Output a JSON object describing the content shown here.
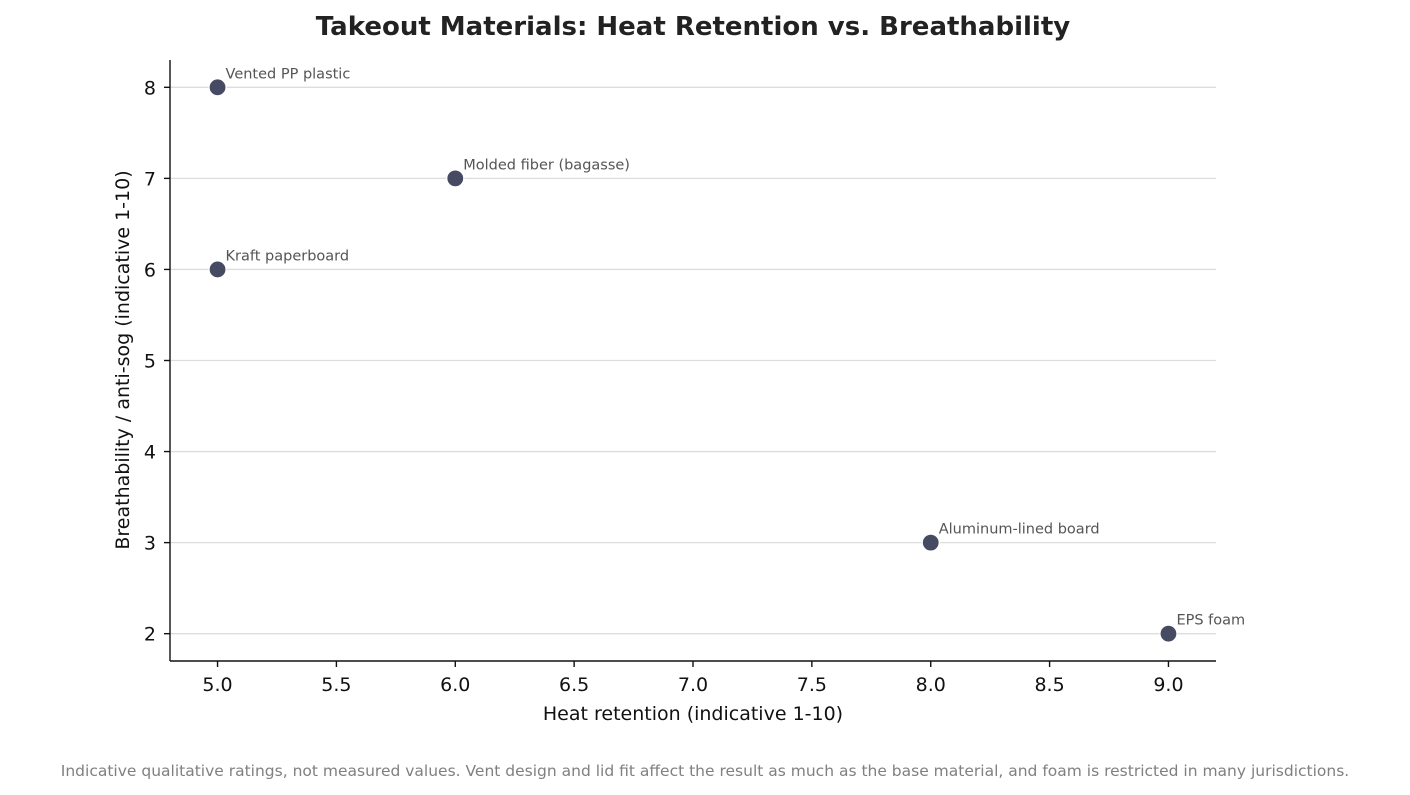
{
  "chart_data": {
    "type": "scatter",
    "title": "Takeout Materials: Heat Retention vs. Breathability",
    "xlabel": "Heat retention (indicative 1-10)",
    "ylabel": "Breathability / anti-sog (indicative 1-10)",
    "xlim": [
      4.8,
      9.2
    ],
    "ylim": [
      1.7,
      8.3
    ],
    "xticks": [
      5.0,
      5.5,
      6.0,
      6.5,
      7.0,
      7.5,
      8.0,
      8.5,
      9.0
    ],
    "xtick_labels": [
      "5.0",
      "5.5",
      "6.0",
      "6.5",
      "7.0",
      "7.5",
      "8.0",
      "8.5",
      "9.0"
    ],
    "yticks": [
      2,
      3,
      4,
      5,
      6,
      7,
      8
    ],
    "ytick_labels": [
      "2",
      "3",
      "4",
      "5",
      "6",
      "7",
      "8"
    ],
    "grid": "horizontal",
    "point_color": "#464a62",
    "points": [
      {
        "label": "Vented PP plastic",
        "x": 5,
        "y": 8
      },
      {
        "label": "Molded fiber (bagasse)",
        "x": 6,
        "y": 7
      },
      {
        "label": "Kraft paperboard",
        "x": 5,
        "y": 6
      },
      {
        "label": "Aluminum-lined board",
        "x": 8,
        "y": 3
      },
      {
        "label": "EPS foam",
        "x": 9,
        "y": 2
      }
    ]
  },
  "footnote": "Indicative qualitative ratings, not measured values. Vent design and lid fit affect the result as much as the base material, and foam is restricted in many jurisdictions."
}
